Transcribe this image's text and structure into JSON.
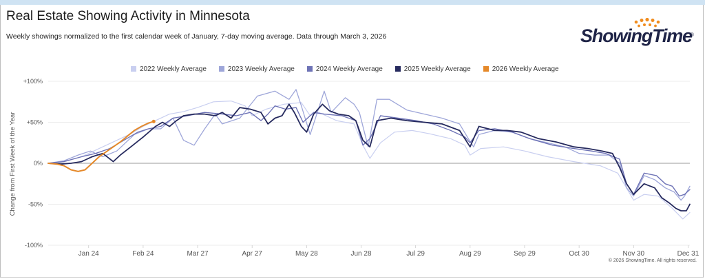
{
  "header": {
    "title": "Real Estate Showing Activity in Minnesota",
    "subtitle": "Weekly showings normalized to the first calendar week of January, 7-day moving average. Data through March 3, 2026"
  },
  "logo": {
    "text": "ShowingTime",
    "registered_mark": "®",
    "icon": "sunburst-dots-icon"
  },
  "footer": {
    "copyright": "© 2026 ShowingTime. All rights reserved."
  },
  "colors": {
    "s2022": "#c9cff0",
    "s2023": "#9ea6d9",
    "s2024": "#6e73b6",
    "s2025": "#262a5e",
    "s2026": "#e5892a",
    "grid": "#e6e6e6",
    "zero": "#9a9a9a",
    "logo_dark": "#1f2447",
    "logo_orange": "#f08c1e"
  },
  "chart_data": {
    "type": "line",
    "ylabel": "Change from First Week of the Year",
    "ylim": [
      -100,
      100
    ],
    "yticks": [
      100,
      50,
      0,
      -50,
      -100
    ],
    "ytick_labels": [
      "+100%",
      "+50%",
      "0%",
      "-50%",
      "-100%"
    ],
    "xlim": [
      1,
      366
    ],
    "xticks": [
      {
        "label": "Jan 24",
        "day": 24
      },
      {
        "label": "Feb 24",
        "day": 55
      },
      {
        "label": "Mar 27",
        "day": 86
      },
      {
        "label": "Apr 27",
        "day": 117
      },
      {
        "label": "May 28",
        "day": 148
      },
      {
        "label": "Jun 28",
        "day": 179
      },
      {
        "label": "Jul 29",
        "day": 210
      },
      {
        "label": "Aug 29",
        "day": 241
      },
      {
        "label": "Sep 29",
        "day": 272
      },
      {
        "label": "Oct 30",
        "day": 303
      },
      {
        "label": "Nov 30",
        "day": 334
      },
      {
        "label": "Dec 31",
        "day": 365
      }
    ],
    "grid": "horizontal",
    "legend": "top",
    "series": [
      {
        "name": "2022 Weekly Average",
        "color_key": "s2022",
        "points": [
          [
            1,
            0
          ],
          [
            10,
            2
          ],
          [
            20,
            8
          ],
          [
            30,
            18
          ],
          [
            40,
            28
          ],
          [
            48,
            36
          ],
          [
            55,
            45
          ],
          [
            62,
            52
          ],
          [
            70,
            60
          ],
          [
            78,
            63
          ],
          [
            86,
            68
          ],
          [
            95,
            75
          ],
          [
            105,
            76
          ],
          [
            113,
            70
          ],
          [
            117,
            58
          ],
          [
            125,
            66
          ],
          [
            135,
            72
          ],
          [
            145,
            74
          ],
          [
            150,
            58
          ],
          [
            155,
            62
          ],
          [
            165,
            52
          ],
          [
            175,
            48
          ],
          [
            180,
            22
          ],
          [
            184,
            6
          ],
          [
            190,
            25
          ],
          [
            198,
            38
          ],
          [
            208,
            40
          ],
          [
            218,
            36
          ],
          [
            230,
            30
          ],
          [
            238,
            22
          ],
          [
            241,
            10
          ],
          [
            247,
            18
          ],
          [
            260,
            20
          ],
          [
            272,
            15
          ],
          [
            285,
            8
          ],
          [
            300,
            2
          ],
          [
            315,
            -3
          ],
          [
            325,
            -12
          ],
          [
            334,
            -45
          ],
          [
            340,
            -38
          ],
          [
            348,
            -40
          ],
          [
            356,
            -55
          ],
          [
            362,
            -68
          ],
          [
            366,
            -60
          ]
        ]
      },
      {
        "name": "2023 Weekly Average",
        "color_key": "s2023",
        "points": [
          [
            1,
            0
          ],
          [
            10,
            3
          ],
          [
            18,
            10
          ],
          [
            25,
            15
          ],
          [
            32,
            8
          ],
          [
            40,
            15
          ],
          [
            50,
            35
          ],
          [
            58,
            42
          ],
          [
            65,
            42
          ],
          [
            72,
            55
          ],
          [
            78,
            28
          ],
          [
            84,
            22
          ],
          [
            90,
            42
          ],
          [
            96,
            60
          ],
          [
            100,
            48
          ],
          [
            110,
            55
          ],
          [
            120,
            82
          ],
          [
            130,
            88
          ],
          [
            138,
            78
          ],
          [
            142,
            90
          ],
          [
            145,
            70
          ],
          [
            150,
            35
          ],
          [
            158,
            88
          ],
          [
            162,
            62
          ],
          [
            170,
            80
          ],
          [
            175,
            72
          ],
          [
            178,
            62
          ],
          [
            183,
            20
          ],
          [
            188,
            78
          ],
          [
            195,
            78
          ],
          [
            205,
            65
          ],
          [
            215,
            60
          ],
          [
            225,
            55
          ],
          [
            235,
            48
          ],
          [
            240,
            30
          ],
          [
            243,
            20
          ],
          [
            246,
            35
          ],
          [
            255,
            40
          ],
          [
            265,
            38
          ],
          [
            275,
            30
          ],
          [
            285,
            25
          ],
          [
            295,
            20
          ],
          [
            303,
            12
          ],
          [
            312,
            10
          ],
          [
            320,
            10
          ],
          [
            326,
            0
          ],
          [
            330,
            -30
          ],
          [
            334,
            -40
          ],
          [
            340,
            -15
          ],
          [
            346,
            -20
          ],
          [
            352,
            -30
          ],
          [
            357,
            -35
          ],
          [
            361,
            -45
          ],
          [
            363,
            -40
          ],
          [
            366,
            -28
          ]
        ]
      },
      {
        "name": "2024 Weekly Average",
        "color_key": "s2024",
        "points": [
          [
            1,
            0
          ],
          [
            10,
            2
          ],
          [
            20,
            8
          ],
          [
            28,
            12
          ],
          [
            36,
            18
          ],
          [
            44,
            28
          ],
          [
            52,
            38
          ],
          [
            58,
            42
          ],
          [
            65,
            45
          ],
          [
            72,
            55
          ],
          [
            80,
            58
          ],
          [
            90,
            62
          ],
          [
            100,
            60
          ],
          [
            108,
            58
          ],
          [
            116,
            62
          ],
          [
            122,
            52
          ],
          [
            126,
            60
          ],
          [
            130,
            70
          ],
          [
            136,
            66
          ],
          [
            142,
            68
          ],
          [
            146,
            50
          ],
          [
            152,
            62
          ],
          [
            158,
            60
          ],
          [
            168,
            58
          ],
          [
            176,
            52
          ],
          [
            180,
            22
          ],
          [
            184,
            30
          ],
          [
            190,
            58
          ],
          [
            200,
            55
          ],
          [
            210,
            52
          ],
          [
            220,
            48
          ],
          [
            230,
            40
          ],
          [
            238,
            32
          ],
          [
            241,
            25
          ],
          [
            246,
            40
          ],
          [
            255,
            42
          ],
          [
            265,
            38
          ],
          [
            275,
            30
          ],
          [
            288,
            22
          ],
          [
            300,
            18
          ],
          [
            310,
            15
          ],
          [
            318,
            12
          ],
          [
            326,
            5
          ],
          [
            330,
            -25
          ],
          [
            334,
            -38
          ],
          [
            340,
            -12
          ],
          [
            347,
            -15
          ],
          [
            352,
            -25
          ],
          [
            356,
            -28
          ],
          [
            360,
            -40
          ],
          [
            363,
            -38
          ],
          [
            366,
            -32
          ]
        ]
      },
      {
        "name": "2025 Weekly Average",
        "color_key": "s2025",
        "points": [
          [
            1,
            0
          ],
          [
            8,
            -1
          ],
          [
            14,
            0
          ],
          [
            20,
            2
          ],
          [
            26,
            8
          ],
          [
            32,
            12
          ],
          [
            38,
            2
          ],
          [
            42,
            10
          ],
          [
            48,
            20
          ],
          [
            55,
            32
          ],
          [
            62,
            45
          ],
          [
            66,
            50
          ],
          [
            70,
            45
          ],
          [
            74,
            52
          ],
          [
            78,
            58
          ],
          [
            84,
            60
          ],
          [
            90,
            60
          ],
          [
            96,
            58
          ],
          [
            100,
            62
          ],
          [
            105,
            55
          ],
          [
            110,
            68
          ],
          [
            116,
            66
          ],
          [
            122,
            62
          ],
          [
            126,
            48
          ],
          [
            130,
            55
          ],
          [
            134,
            58
          ],
          [
            138,
            72
          ],
          [
            141,
            62
          ],
          [
            145,
            45
          ],
          [
            148,
            38
          ],
          [
            152,
            60
          ],
          [
            157,
            72
          ],
          [
            161,
            64
          ],
          [
            166,
            60
          ],
          [
            172,
            58
          ],
          [
            176,
            52
          ],
          [
            180,
            28
          ],
          [
            184,
            20
          ],
          [
            188,
            52
          ],
          [
            196,
            55
          ],
          [
            205,
            52
          ],
          [
            215,
            50
          ],
          [
            225,
            48
          ],
          [
            235,
            40
          ],
          [
            241,
            20
          ],
          [
            246,
            45
          ],
          [
            255,
            40
          ],
          [
            262,
            40
          ],
          [
            270,
            38
          ],
          [
            280,
            30
          ],
          [
            290,
            26
          ],
          [
            300,
            20
          ],
          [
            308,
            18
          ],
          [
            316,
            15
          ],
          [
            322,
            12
          ],
          [
            326,
            -5
          ],
          [
            330,
            -25
          ],
          [
            334,
            -38
          ],
          [
            340,
            -25
          ],
          [
            346,
            -30
          ],
          [
            350,
            -42
          ],
          [
            354,
            -48
          ],
          [
            358,
            -55
          ],
          [
            361,
            -58
          ],
          [
            364,
            -58
          ],
          [
            366,
            -50
          ]
        ]
      },
      {
        "name": "2026 Weekly Average",
        "color_key": "s2026",
        "points": [
          [
            1,
            0
          ],
          [
            6,
            -1
          ],
          [
            10,
            -3
          ],
          [
            14,
            -8
          ],
          [
            18,
            -10
          ],
          [
            22,
            -8
          ],
          [
            26,
            0
          ],
          [
            30,
            8
          ],
          [
            34,
            14
          ],
          [
            38,
            20
          ],
          [
            42,
            26
          ],
          [
            46,
            33
          ],
          [
            50,
            40
          ],
          [
            54,
            45
          ],
          [
            58,
            49
          ],
          [
            61,
            51
          ]
        ]
      }
    ]
  }
}
